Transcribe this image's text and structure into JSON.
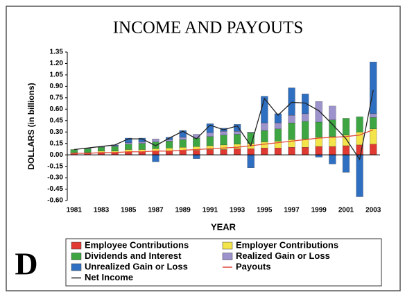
{
  "chart_data": {
    "type": "bar",
    "stacked": true,
    "title": "INCOME AND PAYOUTS",
    "xlabel": "YEAR",
    "ylabel": "DOLLARS (in billions)",
    "annotation": "D",
    "categories": [
      "1981",
      null,
      "1983",
      null,
      "1985",
      null,
      "1987",
      null,
      "1989",
      null,
      "1991",
      null,
      "1993",
      null,
      "1995",
      null,
      "1997",
      null,
      "1999",
      null,
      "2001",
      null,
      "2003"
    ],
    "ylim": [
      -0.6,
      1.35
    ],
    "yticks": [
      {
        "value": -0.6,
        "label": "-0.60"
      },
      {
        "value": -0.45,
        "label": "-0.45"
      },
      {
        "value": -0.3,
        "label": "-0.30"
      },
      {
        "value": -0.15,
        "label": "-0.15"
      },
      {
        "value": 0,
        "label": "0.00"
      },
      {
        "value": 0.15,
        "label": "0.15"
      },
      {
        "value": 0.3,
        "label": "0.30"
      },
      {
        "value": 0.45,
        "label": "0.45"
      },
      {
        "value": 0.6,
        "label": "0.60"
      },
      {
        "value": 0.75,
        "label": "0.75"
      },
      {
        "value": 0.9,
        "label": "0.90"
      },
      {
        "value": 1.05,
        "label": "1.05"
      },
      {
        "value": 1.2,
        "label": "1.20"
      },
      {
        "value": 1.35,
        "label": "1.35"
      }
    ],
    "grid": false,
    "series": [
      {
        "name": "Employee Contributions",
        "color": "#e03a32",
        "values": [
          0.02,
          0.02,
          0.03,
          0.03,
          0.04,
          0.04,
          0.05,
          0.05,
          0.06,
          0.06,
          0.07,
          0.07,
          0.08,
          0.08,
          0.09,
          0.09,
          0.1,
          0.1,
          0.11,
          0.11,
          0.12,
          0.13,
          0.14
        ]
      },
      {
        "name": "Employer Contributions",
        "color": "#f2e44a",
        "values": [
          0.01,
          0.01,
          0.02,
          0.02,
          0.03,
          0.03,
          0.03,
          0.04,
          0.04,
          0.05,
          0.05,
          0.06,
          0.06,
          0.07,
          0.08,
          0.09,
          0.1,
          0.11,
          0.12,
          0.13,
          0.14,
          0.17,
          0.2
        ]
      },
      {
        "name": "Dividends and Interest",
        "color": "#3da643",
        "values": [
          0.04,
          0.05,
          0.05,
          0.06,
          0.07,
          0.08,
          0.09,
          0.09,
          0.1,
          0.11,
          0.12,
          0.13,
          0.13,
          0.14,
          0.15,
          0.16,
          0.22,
          0.23,
          0.2,
          0.22,
          0.22,
          0.2,
          0.15
        ]
      },
      {
        "name": "Realized Gain or Loss",
        "color": "#9d93cc",
        "values": [
          0,
          0.01,
          0.01,
          0.01,
          0.02,
          0.02,
          0.04,
          0.02,
          0.03,
          0.05,
          0.05,
          0.05,
          0.04,
          0.01,
          0.1,
          0.08,
          0.1,
          0.1,
          0.27,
          0.18,
          0,
          0,
          0.05
        ]
      },
      {
        "name": "Unrealized Gain or Loss",
        "color": "#2f6fc1",
        "values": [
          0,
          0,
          0,
          0.01,
          0.06,
          0.05,
          -0.09,
          0.03,
          0.09,
          -0.05,
          0.12,
          0.04,
          0.09,
          -0.17,
          0.35,
          0.12,
          0.36,
          0.26,
          -0.03,
          -0.12,
          -0.23,
          -0.55,
          0.68
        ]
      },
      {
        "name": "Payouts",
        "type": "line",
        "color": "#e04a3a",
        "values": [
          0.02,
          0.02,
          0.03,
          0.03,
          0.04,
          0.04,
          0.05,
          0.05,
          0.06,
          0.07,
          0.08,
          0.09,
          0.1,
          0.12,
          0.14,
          0.16,
          0.18,
          0.2,
          0.22,
          0.23,
          0.24,
          0.26,
          0.33
        ]
      },
      {
        "name": "Net Income",
        "type": "line",
        "color": "#222222",
        "values": [
          0.07,
          0.09,
          0.11,
          0.13,
          0.21,
          0.21,
          0.12,
          0.22,
          0.31,
          0.21,
          0.39,
          0.33,
          0.38,
          0.12,
          0.74,
          0.52,
          0.69,
          0.68,
          0.58,
          0.4,
          0.21,
          -0.06,
          0.85
        ]
      }
    ]
  }
}
